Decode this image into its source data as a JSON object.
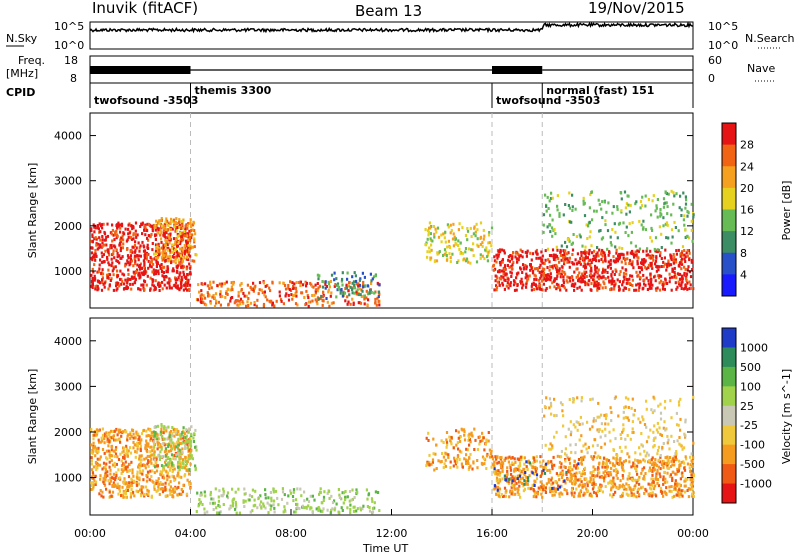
{
  "header": {
    "station": "Inuvik (fitACF)",
    "beam": "Beam 13",
    "date": "19/Nov/2015"
  },
  "panels": {
    "nsky": {
      "label": "N.Sky",
      "ticks_left": [
        "10^5",
        "10^0"
      ],
      "ticks_right": [
        "10^5",
        "10^0"
      ],
      "right_label": "N.Search"
    },
    "freq": {
      "label_line1": "Freq.",
      "label_line2": "[MHz]",
      "ticks_left": [
        "18",
        "8"
      ],
      "ticks_right": [
        "60",
        "0"
      ],
      "right_label": "Nave"
    },
    "cpid": {
      "label": "CPID",
      "segments": [
        {
          "start_h": 0,
          "end_h": 4,
          "text": "twofsound -3503"
        },
        {
          "start_h": 4,
          "end_h": 16,
          "text": "themis 3300"
        },
        {
          "start_h": 16,
          "end_h": 18,
          "text": "twofsound -3503"
        },
        {
          "start_h": 18,
          "end_h": 24,
          "text": "normal (fast) 151"
        }
      ]
    }
  },
  "chart_data": [
    {
      "type": "heatmap",
      "title": "Power",
      "xlabel": "Time UT",
      "ylabel": "Slant Range [km]",
      "xlim_hours": [
        0,
        24
      ],
      "ylim": [
        180,
        4500
      ],
      "x_ticks": [
        "00:00",
        "04:00",
        "08:00",
        "12:00",
        "16:00",
        "20:00",
        "00:00"
      ],
      "y_ticks": [
        1000,
        2000,
        3000,
        4000
      ],
      "colorbar": {
        "label": "Power [dB]",
        "ticks": [
          "4",
          "8",
          "12",
          "16",
          "20",
          "24",
          "28"
        ],
        "colors": [
          "#1a1aff",
          "#2850c8",
          "#3c8c64",
          "#66bb55",
          "#e6d21e",
          "#f5a01e",
          "#f06414",
          "#e61414"
        ]
      },
      "scatter_regions": [
        {
          "t0": 0.0,
          "t1": 4.0,
          "r0": 600,
          "r1": 2100,
          "color_index": 7,
          "density": 0.85
        },
        {
          "t0": 2.5,
          "t1": 4.2,
          "r0": 1200,
          "r1": 2200,
          "color_index": 5,
          "density": 0.6
        },
        {
          "t0": 4.2,
          "t1": 11.5,
          "r0": 250,
          "r1": 800,
          "color_index": 6,
          "density": 0.5
        },
        {
          "t0": 13.3,
          "t1": 16.0,
          "r0": 1200,
          "r1": 2100,
          "color_index": 4,
          "density": 0.4
        },
        {
          "t0": 16.0,
          "t1": 24.0,
          "r0": 600,
          "r1": 1500,
          "color_index": 7,
          "density": 0.8
        },
        {
          "t0": 18.0,
          "t1": 24.0,
          "r0": 1500,
          "r1": 2800,
          "color_index": 3,
          "density": 0.2
        },
        {
          "t0": 9.0,
          "t1": 11.5,
          "r0": 400,
          "r1": 1000,
          "color_index": 2,
          "density": 0.35
        }
      ]
    },
    {
      "type": "heatmap",
      "title": "Velocity",
      "xlabel": "Time UT",
      "ylabel": "Slant Range [km]",
      "xlim_hours": [
        0,
        24
      ],
      "ylim": [
        180,
        4500
      ],
      "x_ticks": [
        "00:00",
        "04:00",
        "08:00",
        "12:00",
        "16:00",
        "20:00",
        "00:00"
      ],
      "y_ticks": [
        1000,
        2000,
        3000,
        4000
      ],
      "colorbar": {
        "label": "Velocity [m s^-1]",
        "ticks": [
          "1000",
          "500",
          "100",
          "25",
          "-25",
          "-100",
          "-500",
          "-1000"
        ],
        "colors": [
          "#1e3cc8",
          "#2d8c5a",
          "#5ab446",
          "#a0d24b",
          "#c8c8b4",
          "#f0c83c",
          "#f59b1e",
          "#f05a14",
          "#e61414"
        ]
      },
      "scatter_regions": [
        {
          "t0": 0.0,
          "t1": 4.0,
          "r0": 600,
          "r1": 2100,
          "color_index": 6,
          "density": 0.8
        },
        {
          "t0": 2.5,
          "t1": 4.2,
          "r0": 1200,
          "r1": 2200,
          "color_index": 3,
          "density": 0.5
        },
        {
          "t0": 4.2,
          "t1": 11.5,
          "r0": 250,
          "r1": 800,
          "color_index": 3,
          "density": 0.4
        },
        {
          "t0": 13.3,
          "t1": 16.0,
          "r0": 1200,
          "r1": 2100,
          "color_index": 6,
          "density": 0.4
        },
        {
          "t0": 16.0,
          "t1": 24.0,
          "r0": 600,
          "r1": 1500,
          "color_index": 6,
          "density": 0.8
        },
        {
          "t0": 18.0,
          "t1": 24.0,
          "r0": 1500,
          "r1": 2800,
          "color_index": 5,
          "density": 0.2
        },
        {
          "t0": 16.0,
          "t1": 19.5,
          "r0": 700,
          "r1": 1400,
          "color_index": 0,
          "density": 0.08
        }
      ]
    }
  ]
}
